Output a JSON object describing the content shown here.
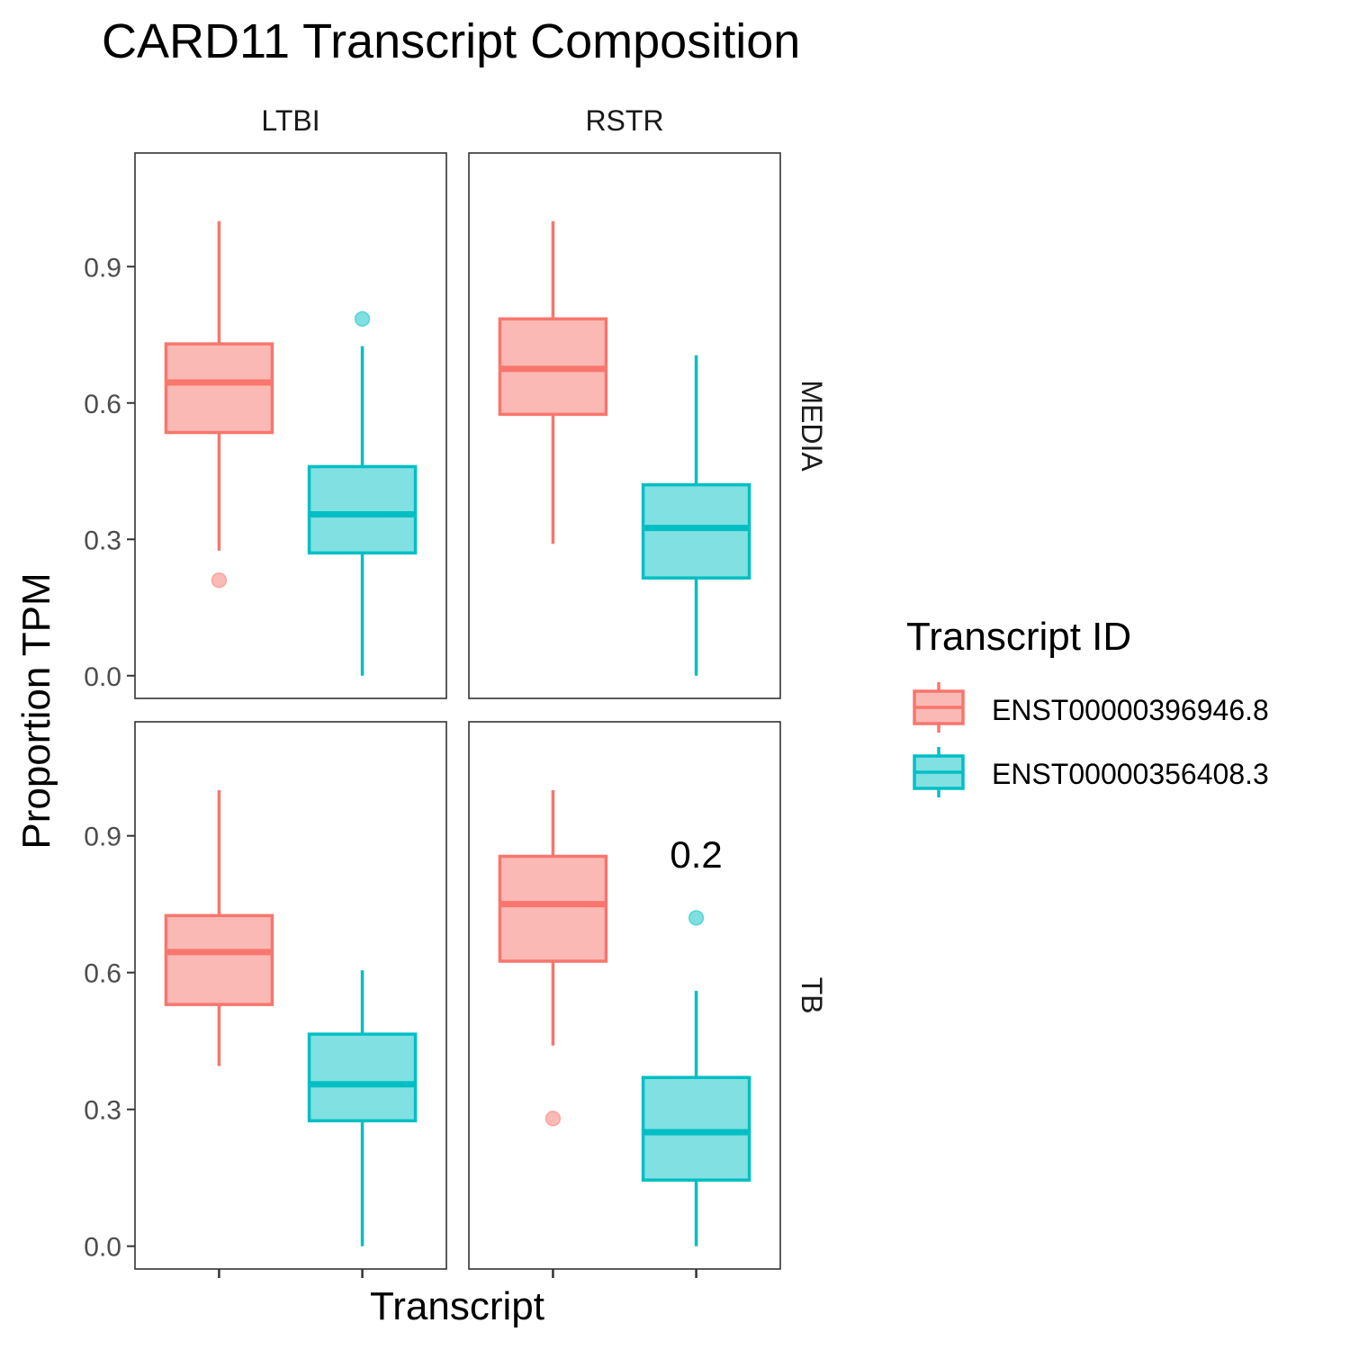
{
  "chart_data": {
    "type": "box",
    "title": "CARD11 Transcript Composition",
    "xlabel": "Transcript",
    "ylabel": "Proportion TPM",
    "ylim": [
      -0.05,
      1.15
    ],
    "yticks": [
      "0.0",
      "0.3",
      "0.6",
      "0.9"
    ],
    "ytick_values": [
      0.0,
      0.3,
      0.6,
      0.9
    ],
    "col_facets": [
      "LTBI",
      "RSTR"
    ],
    "row_facets": [
      "MEDIA",
      "TB"
    ],
    "legend": {
      "title": "Transcript ID",
      "position": "right",
      "entries": [
        "ENST00000396946.8",
        "ENST00000356408.3"
      ]
    },
    "colors": {
      "ENST00000396946.8": "#F8766D",
      "ENST00000356408.3": "#00BFC4"
    },
    "panels": [
      {
        "row": "MEDIA",
        "col": "LTBI",
        "boxes": [
          {
            "series": "ENST00000396946.8",
            "min": 0.275,
            "q1": 0.535,
            "median": 0.645,
            "q3": 0.73,
            "max": 1.0,
            "outliers": [
              0.21
            ]
          },
          {
            "series": "ENST00000356408.3",
            "min": 0.0,
            "q1": 0.27,
            "median": 0.355,
            "q3": 0.46,
            "max": 0.725,
            "outliers": [
              0.785
            ]
          }
        ]
      },
      {
        "row": "MEDIA",
        "col": "RSTR",
        "boxes": [
          {
            "series": "ENST00000396946.8",
            "min": 0.29,
            "q1": 0.575,
            "median": 0.675,
            "q3": 0.785,
            "max": 1.0,
            "outliers": []
          },
          {
            "series": "ENST00000356408.3",
            "min": 0.0,
            "q1": 0.215,
            "median": 0.325,
            "q3": 0.42,
            "max": 0.705,
            "outliers": []
          }
        ]
      },
      {
        "row": "TB",
        "col": "LTBI",
        "boxes": [
          {
            "series": "ENST00000396946.8",
            "min": 0.395,
            "q1": 0.53,
            "median": 0.645,
            "q3": 0.725,
            "max": 1.0,
            "outliers": []
          },
          {
            "series": "ENST00000356408.3",
            "min": 0.0,
            "q1": 0.275,
            "median": 0.355,
            "q3": 0.465,
            "max": 0.605,
            "outliers": []
          }
        ]
      },
      {
        "row": "TB",
        "col": "RSTR",
        "annotation": "0.2",
        "boxes": [
          {
            "series": "ENST00000396946.8",
            "min": 0.44,
            "q1": 0.625,
            "median": 0.75,
            "q3": 0.855,
            "max": 1.0,
            "outliers": [
              0.28
            ]
          },
          {
            "series": "ENST00000356408.3",
            "min": 0.0,
            "q1": 0.145,
            "median": 0.25,
            "q3": 0.37,
            "max": 0.56,
            "outliers": [
              0.72
            ]
          }
        ]
      }
    ]
  }
}
